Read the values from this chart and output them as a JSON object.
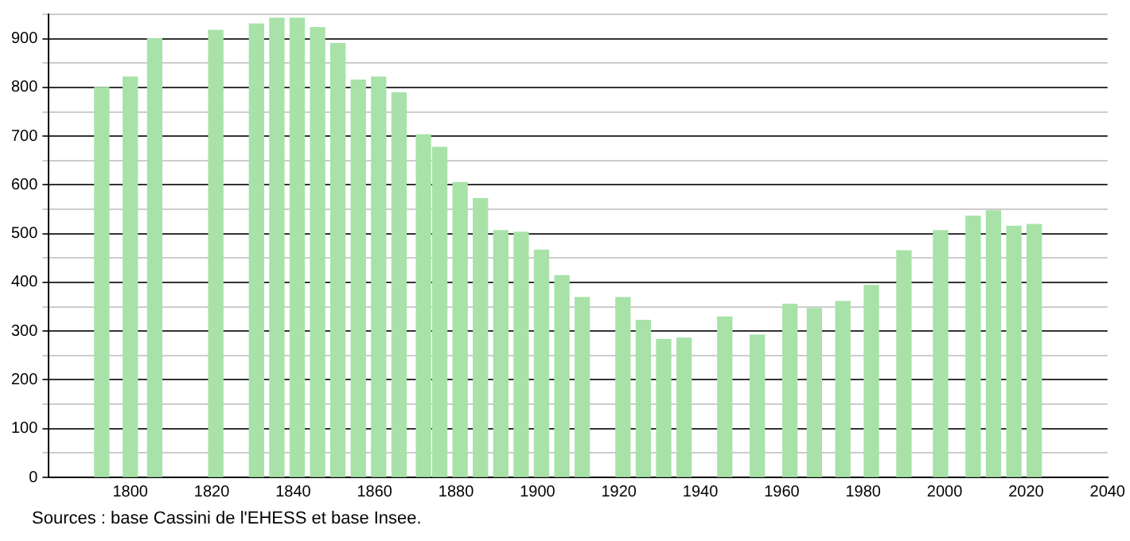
{
  "chart_data": {
    "type": "bar",
    "x": [
      1793,
      1800,
      1806,
      1821,
      1831,
      1836,
      1841,
      1846,
      1851,
      1856,
      1861,
      1866,
      1872,
      1876,
      1881,
      1886,
      1891,
      1896,
      1901,
      1906,
      1911,
      1921,
      1926,
      1931,
      1936,
      1946,
      1954,
      1962,
      1968,
      1975,
      1982,
      1990,
      1999,
      2007,
      2012,
      2017,
      2022
    ],
    "values": [
      800,
      821,
      900,
      917,
      930,
      942,
      942,
      923,
      890,
      815,
      821,
      789,
      703,
      677,
      605,
      572,
      506,
      503,
      466,
      414,
      369,
      369,
      322,
      283,
      286,
      329,
      292,
      355,
      346,
      361,
      394,
      465,
      506,
      536,
      547,
      515,
      519
    ],
    "color": "#a8e2a8",
    "xlim": [
      1780,
      2040
    ],
    "xticks": [
      1800,
      1820,
      1840,
      1860,
      1880,
      1900,
      1920,
      1940,
      1960,
      1980,
      2000,
      2020,
      2040
    ],
    "ylim": [
      0,
      950
    ],
    "yticks": [
      0,
      {
        "value": 50,
        "label": null
      },
      100,
      {
        "value": 150,
        "label": null
      },
      200,
      {
        "value": 250,
        "label": null
      },
      300,
      {
        "value": 350,
        "label": null
      },
      400,
      {
        "value": 450,
        "label": null
      },
      500,
      {
        "value": 550,
        "label": null
      },
      600,
      {
        "value": 650,
        "label": null
      },
      700,
      {
        "value": 750,
        "label": null
      },
      800,
      {
        "value": 850,
        "label": null
      },
      900,
      {
        "value": 950,
        "label": null
      }
    ],
    "grid": "y",
    "legend": false,
    "annotations": [
      "Sources : base Cassini de l'EHESS et base Insee."
    ]
  }
}
